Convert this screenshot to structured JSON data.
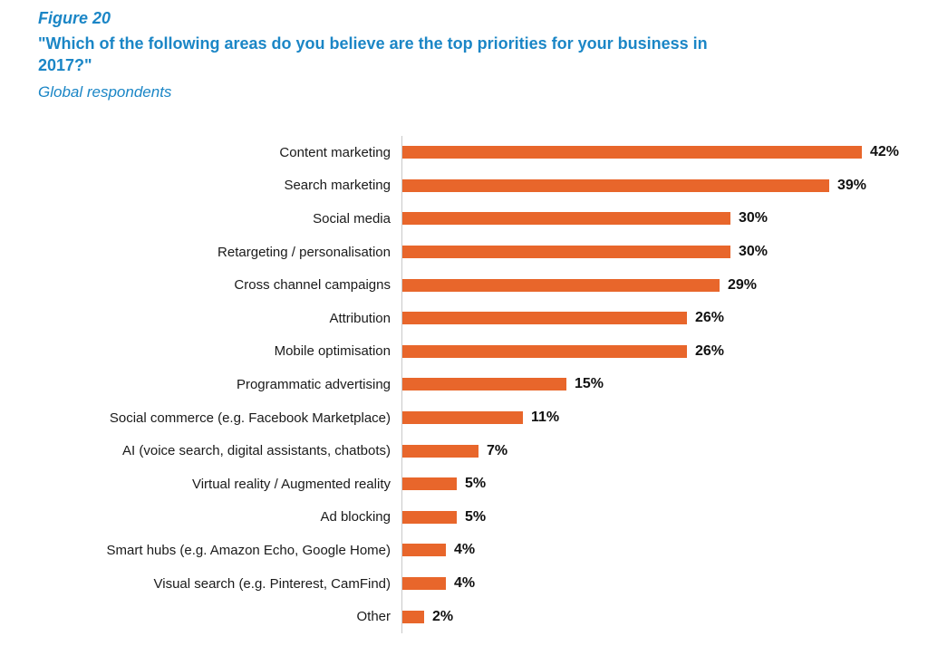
{
  "header": {
    "figure_label": "Figure 20",
    "title": "\"Which of the following areas do you believe are the top priorities for your business in 2017?\"",
    "subtitle": "Global respondents"
  },
  "chart_data": {
    "type": "bar",
    "orientation": "horizontal",
    "title": "\"Which of the following areas do you believe are the top priorities for your business in 2017?\"",
    "subtitle": "Global respondents",
    "categories": [
      "Content marketing",
      "Search marketing",
      "Social media",
      "Retargeting / personalisation",
      "Cross channel campaigns",
      "Attribution",
      "Mobile optimisation",
      "Programmatic advertising",
      "Social commerce (e.g. Facebook Marketplace)",
      "AI (voice search, digital assistants, chatbots)",
      "Virtual reality / Augmented reality",
      "Ad blocking",
      "Smart hubs (e.g. Amazon Echo, Google Home)",
      "Visual search (e.g. Pinterest, CamFind)",
      "Other"
    ],
    "values": [
      42,
      39,
      30,
      30,
      29,
      26,
      26,
      15,
      11,
      7,
      5,
      5,
      4,
      4,
      2
    ],
    "value_suffix": "%",
    "xlim": [
      0,
      45
    ],
    "bar_color": "#e8662b",
    "title_color": "#1b86c6",
    "grid": "off",
    "legend": "none"
  }
}
